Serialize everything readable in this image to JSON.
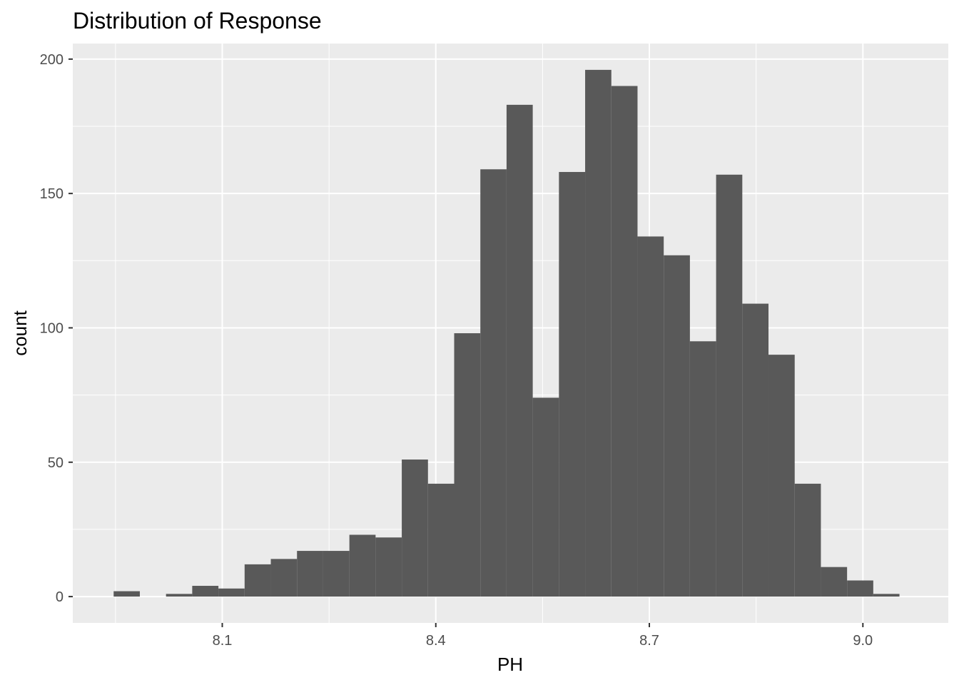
{
  "chart_data": {
    "type": "bar",
    "title": "Distribution of Response",
    "xlabel": "PH",
    "ylabel": "count",
    "bin_width": 0.0368,
    "bins": [
      {
        "x0": 7.9474,
        "x1": 7.9842,
        "count": 2
      },
      {
        "x0": 7.9842,
        "x1": 8.021,
        "count": 0
      },
      {
        "x0": 8.021,
        "x1": 8.0578,
        "count": 1
      },
      {
        "x0": 8.0578,
        "x1": 8.0946,
        "count": 4
      },
      {
        "x0": 8.0946,
        "x1": 8.1314,
        "count": 3
      },
      {
        "x0": 8.1314,
        "x1": 8.1682,
        "count": 12
      },
      {
        "x0": 8.1682,
        "x1": 8.205,
        "count": 14
      },
      {
        "x0": 8.205,
        "x1": 8.2418,
        "count": 17
      },
      {
        "x0": 8.2418,
        "x1": 8.2786,
        "count": 17
      },
      {
        "x0": 8.2786,
        "x1": 8.3154,
        "count": 23
      },
      {
        "x0": 8.3154,
        "x1": 8.3522,
        "count": 22
      },
      {
        "x0": 8.3522,
        "x1": 8.389,
        "count": 51
      },
      {
        "x0": 8.389,
        "x1": 8.4258,
        "count": 42
      },
      {
        "x0": 8.4258,
        "x1": 8.4626,
        "count": 98
      },
      {
        "x0": 8.4626,
        "x1": 8.4994,
        "count": 159
      },
      {
        "x0": 8.4994,
        "x1": 8.5362,
        "count": 183
      },
      {
        "x0": 8.5362,
        "x1": 8.573,
        "count": 74
      },
      {
        "x0": 8.573,
        "x1": 8.6098,
        "count": 158
      },
      {
        "x0": 8.6098,
        "x1": 8.6466,
        "count": 196
      },
      {
        "x0": 8.6466,
        "x1": 8.6834,
        "count": 190
      },
      {
        "x0": 8.6834,
        "x1": 8.7202,
        "count": 134
      },
      {
        "x0": 8.7202,
        "x1": 8.757,
        "count": 127
      },
      {
        "x0": 8.757,
        "x1": 8.7938,
        "count": 95
      },
      {
        "x0": 8.7938,
        "x1": 8.8306,
        "count": 157
      },
      {
        "x0": 8.8306,
        "x1": 8.8674,
        "count": 109
      },
      {
        "x0": 8.8674,
        "x1": 8.9042,
        "count": 90
      },
      {
        "x0": 8.9042,
        "x1": 8.941,
        "count": 42
      },
      {
        "x0": 8.941,
        "x1": 8.9778,
        "count": 11
      },
      {
        "x0": 8.9778,
        "x1": 9.0146,
        "count": 6
      },
      {
        "x0": 9.0146,
        "x1": 9.0514,
        "count": 1
      }
    ],
    "xlim": [
      7.89,
      9.12
    ],
    "ylim": [
      -9.8,
      205.8
    ],
    "x_ticks": [
      {
        "value": 8.1,
        "label": "8.1"
      },
      {
        "value": 8.4,
        "label": "8.4"
      },
      {
        "value": 8.7,
        "label": "8.7"
      },
      {
        "value": 9.0,
        "label": "9.0"
      }
    ],
    "y_ticks": [
      {
        "value": 0,
        "label": "0"
      },
      {
        "value": 50,
        "label": "50"
      },
      {
        "value": 100,
        "label": "100"
      },
      {
        "value": 150,
        "label": "150"
      },
      {
        "value": 200,
        "label": "200"
      }
    ],
    "grid": true,
    "colors": {
      "panel": "#ebebeb",
      "grid_major": "#ffffff",
      "bar": "#595959",
      "tick_text": "#4d4d4d"
    }
  }
}
